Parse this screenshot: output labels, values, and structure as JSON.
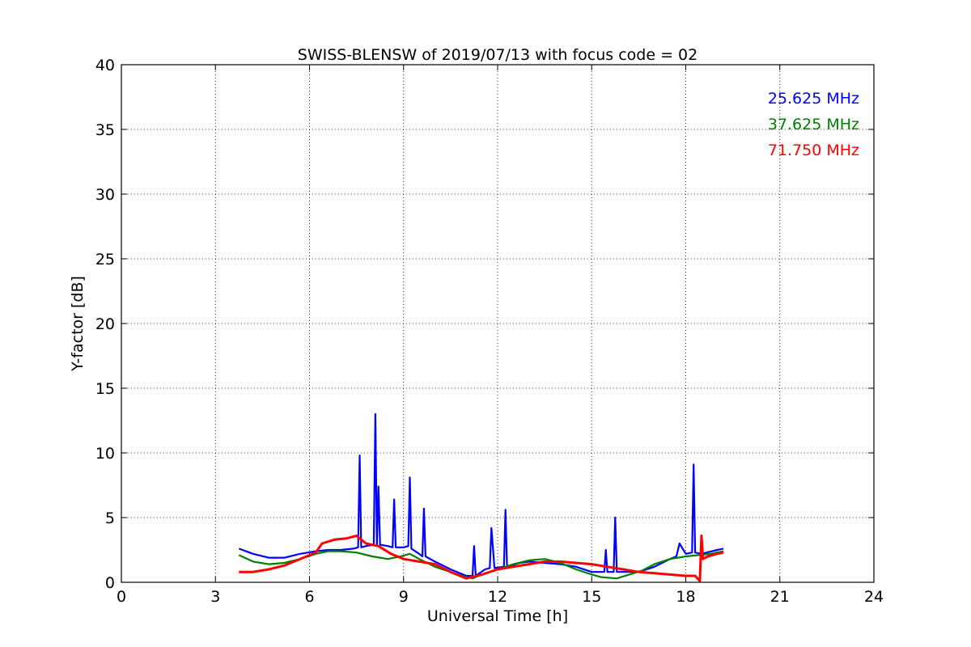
{
  "chart_data": {
    "type": "line",
    "title": "SWISS-BLENSW of 2019/07/13 with focus code = 02",
    "xlabel": "Universal Time [h]",
    "ylabel": "Y-factor [dB]",
    "xlim": [
      0,
      24
    ],
    "ylim": [
      0,
      40
    ],
    "xticks": [
      "0",
      "3",
      "6",
      "9",
      "12",
      "15",
      "18",
      "21",
      "24"
    ],
    "yticks": [
      "0",
      "5",
      "10",
      "15",
      "20",
      "25",
      "30",
      "35",
      "40"
    ],
    "grid": true,
    "legend_position": "top-right",
    "series": [
      {
        "name": "25.625 MHz",
        "color": "#0000ff",
        "x": [
          3.75,
          4.2,
          4.7,
          5.2,
          5.7,
          6.2,
          6.6,
          7.0,
          7.4,
          7.55,
          7.6,
          7.65,
          7.8,
          8.05,
          8.1,
          8.15,
          8.2,
          8.25,
          8.5,
          8.65,
          8.7,
          8.75,
          9.0,
          9.15,
          9.2,
          9.25,
          9.5,
          9.6,
          9.65,
          9.7,
          10.0,
          10.5,
          11.0,
          11.2,
          11.25,
          11.3,
          11.6,
          11.75,
          11.8,
          11.9,
          12.2,
          12.25,
          12.3,
          12.7,
          13.0,
          13.5,
          14.0,
          14.5,
          15.0,
          15.4,
          15.45,
          15.5,
          15.7,
          15.75,
          15.8,
          16.0,
          16.5,
          17.0,
          17.5,
          17.7,
          17.8,
          18.0,
          18.2,
          18.25,
          18.3,
          18.5,
          19.0,
          19.2
        ],
        "y": [
          2.6,
          2.2,
          1.9,
          1.9,
          2.2,
          2.4,
          2.5,
          2.5,
          2.6,
          2.7,
          9.8,
          2.7,
          2.8,
          2.9,
          13.0,
          2.9,
          7.4,
          2.9,
          2.8,
          2.7,
          6.4,
          2.7,
          2.7,
          2.8,
          8.1,
          2.6,
          2.2,
          2.0,
          5.7,
          2.0,
          1.6,
          1.0,
          0.5,
          0.5,
          2.8,
          0.5,
          1.0,
          1.1,
          4.2,
          1.1,
          1.2,
          5.6,
          1.2,
          1.5,
          1.6,
          1.5,
          1.4,
          1.2,
          0.8,
          0.8,
          2.5,
          0.8,
          0.8,
          5.0,
          0.8,
          0.8,
          0.8,
          1.2,
          1.8,
          2.0,
          3.0,
          2.2,
          2.3,
          9.1,
          2.3,
          2.2,
          2.5,
          2.6
        ]
      },
      {
        "name": "37.625 MHz",
        "color": "#008000",
        "x": [
          3.75,
          4.2,
          4.7,
          5.2,
          5.7,
          6.2,
          6.6,
          7.0,
          7.5,
          8.0,
          8.5,
          8.9,
          9.2,
          9.5,
          10.0,
          10.5,
          11.0,
          11.2,
          11.5,
          12.0,
          12.5,
          13.0,
          13.5,
          14.0,
          14.5,
          15.0,
          15.3,
          15.8,
          16.2,
          16.6,
          17.0,
          17.5,
          18.0,
          18.4,
          18.8,
          19.2
        ],
        "y": [
          2.1,
          1.6,
          1.4,
          1.5,
          1.8,
          2.2,
          2.4,
          2.4,
          2.3,
          2.0,
          1.8,
          2.0,
          2.2,
          1.8,
          1.2,
          0.8,
          0.4,
          0.3,
          0.6,
          1.0,
          1.4,
          1.7,
          1.8,
          1.5,
          1.0,
          0.6,
          0.4,
          0.3,
          0.6,
          0.9,
          1.4,
          1.8,
          2.0,
          2.1,
          2.2,
          2.4
        ]
      },
      {
        "name": "71.750 MHz",
        "color": "#ff0000",
        "x": [
          3.75,
          4.2,
          4.7,
          5.2,
          5.7,
          6.2,
          6.4,
          6.8,
          7.2,
          7.5,
          7.8,
          8.2,
          8.6,
          9.0,
          9.5,
          10.0,
          10.5,
          11.0,
          11.5,
          12.0,
          12.5,
          13.0,
          13.5,
          14.0,
          14.5,
          15.0,
          15.5,
          16.0,
          16.5,
          17.0,
          17.5,
          18.0,
          18.3,
          18.45,
          18.5,
          18.55,
          18.7,
          19.0,
          19.2
        ],
        "y": [
          0.8,
          0.8,
          1.0,
          1.3,
          1.8,
          2.3,
          3.0,
          3.3,
          3.4,
          3.6,
          3.0,
          2.8,
          2.2,
          1.8,
          1.6,
          1.4,
          0.8,
          0.3,
          0.6,
          1.0,
          1.2,
          1.4,
          1.6,
          1.6,
          1.5,
          1.4,
          1.2,
          1.0,
          0.8,
          0.7,
          0.6,
          0.5,
          0.5,
          0.1,
          3.6,
          1.8,
          2.0,
          2.2,
          2.3
        ]
      }
    ]
  }
}
